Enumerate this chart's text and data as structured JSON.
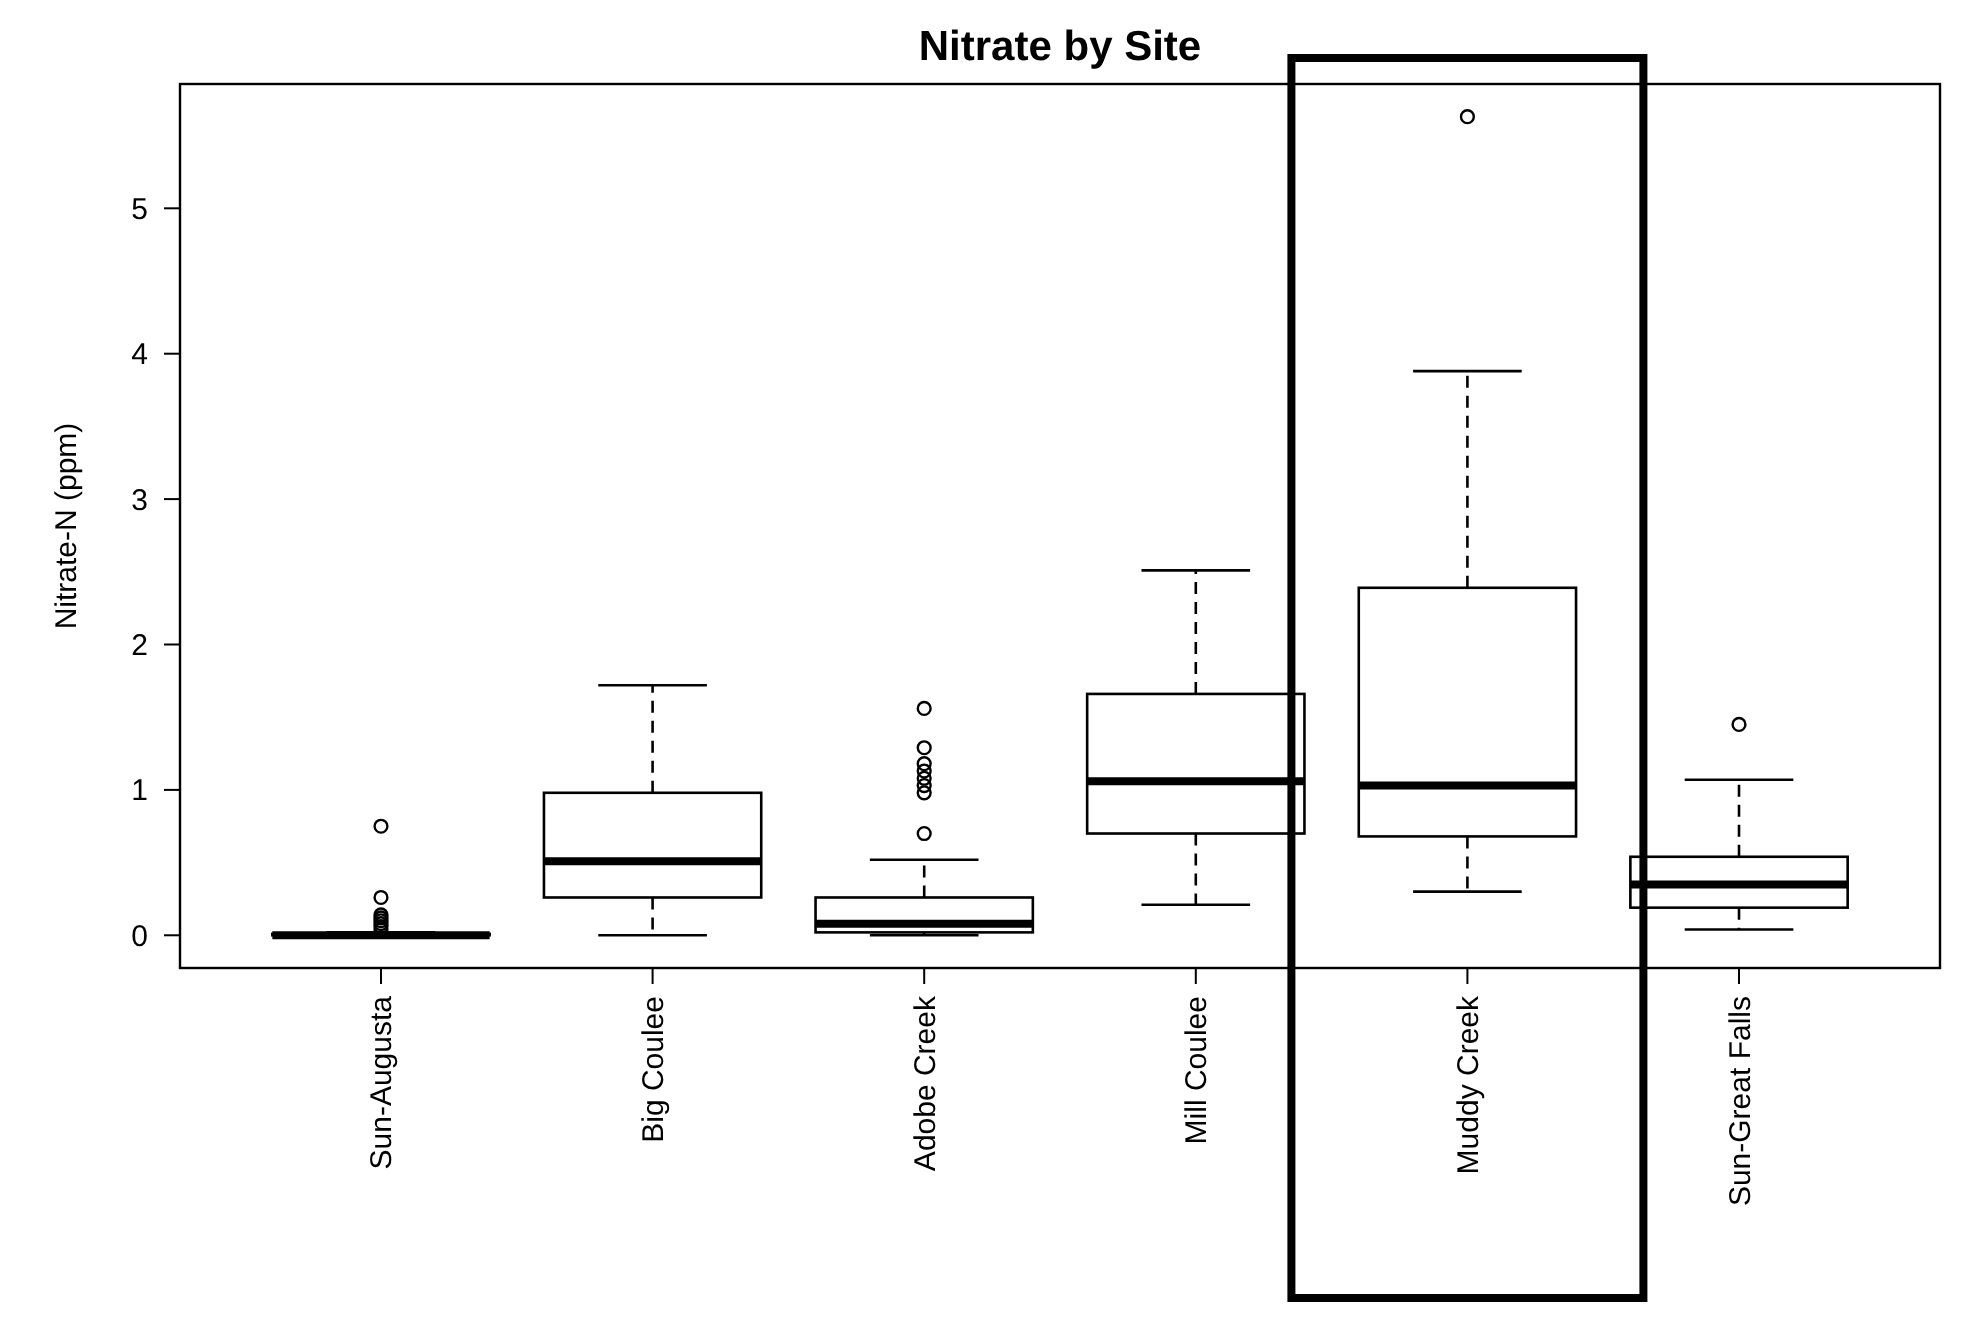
{
  "chart_data": {
    "type": "box",
    "title": "Nitrate by Site",
    "ylabel": "Nitrate-N (ppm)",
    "categories": [
      "Sun-Augusta",
      "Big Coulee",
      "Adobe Creek",
      "Mill Coulee",
      "Muddy Creek",
      "Sun-Great Falls"
    ],
    "boxes": [
      {
        "low": 0,
        "q1": 0,
        "median": 0,
        "q3": 0.01,
        "high": 0.02,
        "outliers": [
          0.04,
          0.06,
          0.08,
          0.1,
          0.12,
          0.14,
          0.26,
          0.75
        ]
      },
      {
        "low": 0,
        "q1": 0.26,
        "median": 0.51,
        "q3": 0.98,
        "high": 1.72
      },
      {
        "low": 0,
        "q1": 0.02,
        "median": 0.08,
        "q3": 0.26,
        "high": 0.52,
        "outliers": [
          0.7,
          0.98,
          1.03,
          1.08,
          1.13,
          1.18,
          1.29,
          1.56
        ]
      },
      {
        "low": 0.21,
        "q1": 0.7,
        "median": 1.06,
        "q3": 1.66,
        "high": 2.51
      },
      {
        "low": 0.3,
        "q1": 0.68,
        "median": 1.03,
        "q3": 2.39,
        "high": 3.88,
        "outliers": [
          5.63
        ]
      },
      {
        "low": 0.04,
        "q1": 0.19,
        "median": 0.35,
        "q3": 0.54,
        "high": 1.07,
        "outliers": [
          1.45
        ]
      }
    ],
    "ylim": [
      -0.225,
      5.855
    ],
    "yticks": [
      0,
      1,
      2,
      3,
      4,
      5
    ],
    "grid": false
  }
}
